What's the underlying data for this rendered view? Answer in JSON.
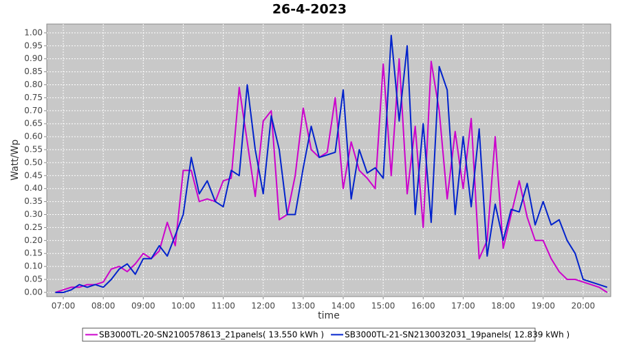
{
  "chart_data": {
    "type": "line",
    "title": "26-4-2023",
    "x_label": "time",
    "y_label": "Watt/Wp",
    "xlim": [
      6.587,
      20.69
    ],
    "ylim": [
      -0.016,
      1.034
    ],
    "grid": true,
    "xticks": [
      {
        "value": 7,
        "label": "07:00"
      },
      {
        "value": 8,
        "label": "08:00"
      },
      {
        "value": 9,
        "label": "09:00"
      },
      {
        "value": 10,
        "label": "10:00"
      },
      {
        "value": 11,
        "label": "11:00"
      },
      {
        "value": 12,
        "label": "12:00"
      },
      {
        "value": 13,
        "label": "13:00"
      },
      {
        "value": 14,
        "label": "14:00"
      },
      {
        "value": 15,
        "label": "15:00"
      },
      {
        "value": 16,
        "label": "16:00"
      },
      {
        "value": 17,
        "label": "17:00"
      },
      {
        "value": 18,
        "label": "18:00"
      },
      {
        "value": 19,
        "label": "19:00"
      },
      {
        "value": 20,
        "label": "20:00"
      }
    ],
    "yticks": [
      {
        "value": 0,
        "label": "0.00"
      },
      {
        "value": 0.05,
        "label": "0.05"
      },
      {
        "value": 0.1,
        "label": "0.10"
      },
      {
        "value": 0.15,
        "label": "0.15"
      },
      {
        "value": 0.2,
        "label": "0.20"
      },
      {
        "value": 0.25,
        "label": "0.25"
      },
      {
        "value": 0.3,
        "label": "0.30"
      },
      {
        "value": 0.35,
        "label": "0.35"
      },
      {
        "value": 0.4,
        "label": "0.40"
      },
      {
        "value": 0.45,
        "label": "0.45"
      },
      {
        "value": 0.5,
        "label": "0.50"
      },
      {
        "value": 0.55,
        "label": "0.55"
      },
      {
        "value": 0.6,
        "label": "0.60"
      },
      {
        "value": 0.65,
        "label": "0.65"
      },
      {
        "value": 0.7,
        "label": "0.70"
      },
      {
        "value": 0.75,
        "label": "0.75"
      },
      {
        "value": 0.8,
        "label": "0.80"
      },
      {
        "value": 0.85,
        "label": "0.85"
      },
      {
        "value": 0.9,
        "label": "0.90"
      },
      {
        "value": 0.95,
        "label": "0.95"
      },
      {
        "value": 1,
        "label": "1.00"
      }
    ],
    "x": [
      6.8,
      7,
      7.2,
      7.4,
      7.6,
      7.8,
      8,
      8.2,
      8.4,
      8.6,
      8.8,
      9,
      9.2,
      9.4,
      9.6,
      9.8,
      10,
      10.2,
      10.4,
      10.6,
      10.8,
      11,
      11.2,
      11.4,
      11.6,
      11.8,
      12,
      12.2,
      12.4,
      12.6,
      12.8,
      13,
      13.2,
      13.4,
      13.6,
      13.8,
      14,
      14.2,
      14.4,
      14.6,
      14.8,
      15,
      15.2,
      15.4,
      15.6,
      15.8,
      16,
      16.2,
      16.4,
      16.6,
      16.8,
      17,
      17.2,
      17.4,
      17.6,
      17.8,
      18,
      18.2,
      18.4,
      18.6,
      18.8,
      19,
      19.2,
      19.4,
      19.6,
      19.8,
      20,
      20.2,
      20.4,
      20.6
    ],
    "series": [
      {
        "name": "SB3000TL-20-SN2100578613_21panels( 13.550 kWh )",
        "color": "#cc00cc",
        "values": [
          0,
          0.01,
          0.02,
          0.02,
          0.03,
          0.03,
          0.04,
          0.09,
          0.1,
          0.08,
          0.11,
          0.15,
          0.13,
          0.16,
          0.27,
          0.18,
          0.47,
          0.47,
          0.35,
          0.36,
          0.35,
          0.43,
          0.44,
          0.79,
          0.58,
          0.37,
          0.66,
          0.7,
          0.28,
          0.3,
          0.45,
          0.71,
          0.55,
          0.52,
          0.54,
          0.75,
          0.4,
          0.58,
          0.47,
          0.44,
          0.4,
          0.88,
          0.45,
          0.9,
          0.38,
          0.64,
          0.25,
          0.89,
          0.7,
          0.36,
          0.62,
          0.4,
          0.67,
          0.13,
          0.2,
          0.6,
          0.17,
          0.3,
          0.43,
          0.29,
          0.2,
          0.2,
          0.13,
          0.08,
          0.05,
          0.05,
          0.04,
          0.03,
          0.02,
          0
        ]
      },
      {
        "name": "SB3000TL-21-SN2130032031_19panels( 12.839 kWh )",
        "color": "#0022cc",
        "values": [
          0,
          0,
          0.01,
          0.03,
          0.02,
          0.03,
          0.02,
          0.05,
          0.09,
          0.11,
          0.07,
          0.13,
          0.13,
          0.18,
          0.14,
          0.22,
          0.3,
          0.52,
          0.38,
          0.43,
          0.35,
          0.33,
          0.47,
          0.45,
          0.8,
          0.55,
          0.38,
          0.68,
          0.55,
          0.3,
          0.3,
          0.48,
          0.64,
          0.52,
          0.53,
          0.54,
          0.78,
          0.36,
          0.55,
          0.46,
          0.48,
          0.44,
          0.99,
          0.66,
          0.95,
          0.3,
          0.65,
          0.27,
          0.87,
          0.78,
          0.3,
          0.6,
          0.33,
          0.63,
          0.14,
          0.34,
          0.2,
          0.32,
          0.31,
          0.42,
          0.26,
          0.35,
          0.26,
          0.28,
          0.2,
          0.15,
          0.05,
          0.04,
          0.03,
          0.02
        ]
      }
    ]
  }
}
